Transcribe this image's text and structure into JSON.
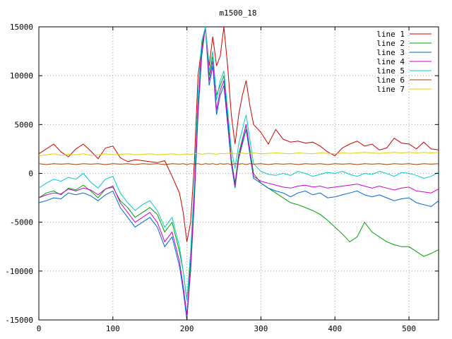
{
  "chart_data": {
    "type": "line",
    "title": "m1500_18",
    "xlabel": "",
    "ylabel": "",
    "xlim": [
      0,
      540
    ],
    "ylim": [
      -15000,
      15000
    ],
    "xticks": [
      0,
      100,
      200,
      300,
      400,
      500
    ],
    "yticks": [
      -15000,
      -10000,
      -5000,
      0,
      5000,
      10000,
      15000
    ],
    "grid": true,
    "legend_position": "top-right",
    "x": [
      0,
      10,
      20,
      30,
      40,
      50,
      60,
      70,
      80,
      90,
      100,
      110,
      120,
      130,
      140,
      150,
      160,
      170,
      180,
      190,
      195,
      200,
      205,
      210,
      215,
      220,
      225,
      230,
      235,
      240,
      245,
      250,
      255,
      260,
      265,
      270,
      275,
      280,
      285,
      290,
      300,
      310,
      320,
      330,
      340,
      350,
      360,
      370,
      380,
      390,
      400,
      410,
      420,
      430,
      440,
      450,
      460,
      470,
      480,
      490,
      500,
      510,
      520,
      530,
      540
    ],
    "series": [
      {
        "name": "line 1",
        "color": "#cc0000",
        "values": [
          2000,
          2500,
          3000,
          2200,
          1700,
          2500,
          3000,
          2300,
          1500,
          2600,
          2800,
          1600,
          1200,
          1400,
          1300,
          1200,
          1100,
          1300,
          -300,
          -2000,
          -4000,
          -7000,
          -5000,
          1000,
          10000,
          13000,
          15000,
          11000,
          14000,
          11000,
          12000,
          15000,
          11000,
          6000,
          3000,
          6000,
          8000,
          9500,
          7000,
          5000,
          4200,
          3000,
          4500,
          3500,
          3200,
          3300,
          3100,
          3200,
          2800,
          2200,
          1800,
          2600,
          3000,
          3300,
          2800,
          3000,
          2400,
          2600,
          3600,
          3100,
          3000,
          2500,
          3200,
          2500,
          2400
        ]
      },
      {
        "name": "line 2",
        "color": "#00a000",
        "values": [
          -2500,
          -2000,
          -1800,
          -2200,
          -1500,
          -1700,
          -1200,
          -1800,
          -2500,
          -1600,
          -1400,
          -2800,
          -3500,
          -4500,
          -4000,
          -3500,
          -4200,
          -6000,
          -5000,
          -8000,
          -10000,
          -13000,
          -9000,
          -2000,
          8000,
          13000,
          15000,
          10000,
          12000,
          8000,
          9000,
          10000,
          6000,
          1500,
          -1000,
          2000,
          3500,
          5000,
          2500,
          0,
          -1000,
          -1500,
          -2000,
          -2500,
          -3000,
          -3200,
          -3500,
          -3800,
          -4200,
          -4800,
          -5500,
          -6200,
          -7000,
          -6500,
          -5000,
          -6000,
          -6500,
          -7000,
          -7300,
          -7500,
          -7500,
          -8000,
          -8500,
          -8200,
          -7800
        ]
      },
      {
        "name": "line 3",
        "color": "#0066cc",
        "values": [
          -3000,
          -2800,
          -2500,
          -2600,
          -2000,
          -2200,
          -2000,
          -2300,
          -2800,
          -2200,
          -1800,
          -3500,
          -4500,
          -5500,
          -5000,
          -4500,
          -5500,
          -7500,
          -6500,
          -9500,
          -12000,
          -15000,
          -10000,
          -3000,
          6000,
          12000,
          15000,
          9000,
          11000,
          6000,
          8000,
          9000,
          5000,
          1000,
          -1500,
          1500,
          3000,
          4500,
          2000,
          -500,
          -1000,
          -1500,
          -1800,
          -2000,
          -2400,
          -2000,
          -1800,
          -2200,
          -2000,
          -2500,
          -2400,
          -2200,
          -2000,
          -1800,
          -2200,
          -2400,
          -2200,
          -2500,
          -2800,
          -2600,
          -2500,
          -3000,
          -3200,
          -3400,
          -2800
        ]
      },
      {
        "name": "line 4",
        "color": "#cc00cc",
        "values": [
          -2500,
          -2200,
          -2000,
          -2100,
          -1600,
          -1800,
          -1500,
          -1700,
          -2200,
          -1600,
          -1300,
          -3000,
          -4000,
          -5000,
          -4500,
          -4000,
          -5000,
          -7000,
          -6000,
          -9000,
          -11500,
          -14500,
          -9500,
          -2500,
          6500,
          12500,
          15000,
          9500,
          11500,
          6500,
          8500,
          9500,
          5500,
          1200,
          -1200,
          1800,
          3300,
          5000,
          2200,
          -300,
          -800,
          -1000,
          -1200,
          -1400,
          -1500,
          -1300,
          -1200,
          -1400,
          -1300,
          -1500,
          -1400,
          -1300,
          -1200,
          -1100,
          -1300,
          -1500,
          -1300,
          -1500,
          -1700,
          -1500,
          -1400,
          -1800,
          -1900,
          -2000,
          -1600
        ]
      },
      {
        "name": "line 5",
        "color": "#00cccc",
        "values": [
          -1500,
          -1000,
          -600,
          -800,
          -400,
          -600,
          0,
          -900,
          -1500,
          -600,
          -300,
          -2000,
          -3000,
          -3800,
          -3200,
          -2800,
          -3800,
          -5500,
          -4500,
          -7500,
          -10000,
          -13000,
          -8000,
          -1000,
          8000,
          13500,
          15000,
          10500,
          12500,
          7500,
          9500,
          10500,
          6500,
          2500,
          500,
          3000,
          4500,
          6000,
          3500,
          1000,
          200,
          -100,
          -200,
          0,
          -200,
          200,
          0,
          -300,
          -100,
          100,
          0,
          200,
          -100,
          -300,
          0,
          -100,
          200,
          0,
          -300,
          100,
          0,
          -200,
          -500,
          -300,
          100
        ]
      },
      {
        "name": "line 6",
        "color": "#a04000",
        "values": [
          1000,
          900,
          1000,
          950,
          1000,
          900,
          1000,
          950,
          1000,
          900,
          1000,
          950,
          1000,
          900,
          1000,
          950,
          1000,
          900,
          1000,
          950,
          1000,
          900,
          1000,
          950,
          1000,
          900,
          1000,
          950,
          1000,
          900,
          1000,
          950,
          1000,
          900,
          1000,
          950,
          1000,
          900,
          1000,
          950,
          1000,
          900,
          1000,
          950,
          1000,
          900,
          1000,
          950,
          1000,
          900,
          1000,
          950,
          1000,
          900,
          1000,
          950,
          1000,
          900,
          1000,
          950,
          1000,
          900,
          1000,
          950,
          1000
        ]
      },
      {
        "name": "line 7",
        "color": "#e0d000",
        "values": [
          1800,
          1900,
          2000,
          1850,
          1950,
          1900,
          2000,
          1850,
          1900,
          2000,
          1900,
          1950,
          2000,
          1900,
          1950,
          2000,
          1900,
          1950,
          2000,
          1900,
          1950,
          2000,
          1950,
          2000,
          2050,
          1950,
          2000,
          2050,
          2000,
          1950,
          2050,
          2000,
          2050,
          2100,
          2000,
          2050,
          2100,
          2000,
          2050,
          2100,
          2000,
          2050,
          2100,
          2050,
          2000,
          2100,
          2050,
          2000,
          2100,
          2050,
          2000,
          2100,
          2050,
          2100,
          2150,
          2100,
          2050,
          2100,
          2150,
          2100,
          2150,
          2100,
          2150,
          2100,
          2150
        ]
      }
    ]
  }
}
